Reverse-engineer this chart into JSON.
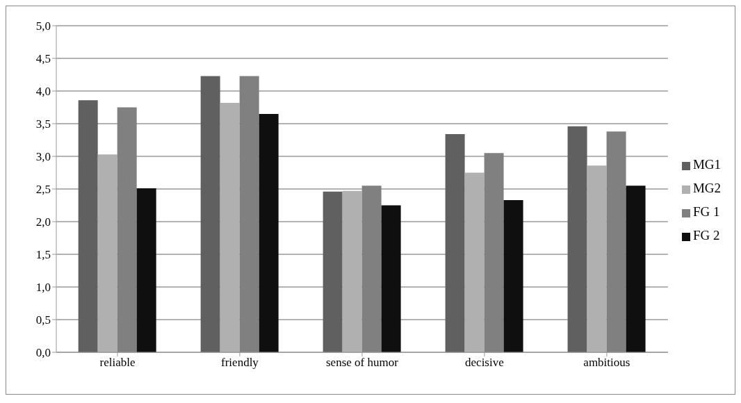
{
  "chart_data": {
    "type": "bar",
    "categories": [
      "reliable",
      "friendly",
      "sense of humor",
      "decisive",
      "ambitious"
    ],
    "series": [
      {
        "name": "MG1",
        "color": "#606060",
        "values": [
          3.86,
          4.23,
          2.46,
          3.34,
          3.46
        ]
      },
      {
        "name": "MG2",
        "color": "#b0b0b0",
        "values": [
          3.03,
          3.82,
          2.47,
          2.75,
          2.86
        ]
      },
      {
        "name": "FG 1",
        "color": "#808080",
        "values": [
          3.75,
          4.23,
          2.55,
          3.05,
          3.38
        ]
      },
      {
        "name": "FG 2",
        "color": "#0f0f0f",
        "values": [
          2.51,
          3.65,
          2.25,
          2.33,
          2.55
        ]
      }
    ],
    "ylim": [
      0,
      5
    ],
    "yticks": [
      {
        "value": 0,
        "label": "0,0"
      },
      {
        "value": 0.5,
        "label": "0,5"
      },
      {
        "value": 1,
        "label": "1,0"
      },
      {
        "value": 1.5,
        "label": "1,5"
      },
      {
        "value": 2,
        "label": "2,0"
      },
      {
        "value": 2.5,
        "label": "2,5"
      },
      {
        "value": 3,
        "label": "3,0"
      },
      {
        "value": 3.5,
        "label": "3,5"
      },
      {
        "value": 4,
        "label": "4,0"
      },
      {
        "value": 4.5,
        "label": "4,5"
      },
      {
        "value": 5,
        "label": "5,0"
      }
    ],
    "grid": "y",
    "legend": "right"
  }
}
